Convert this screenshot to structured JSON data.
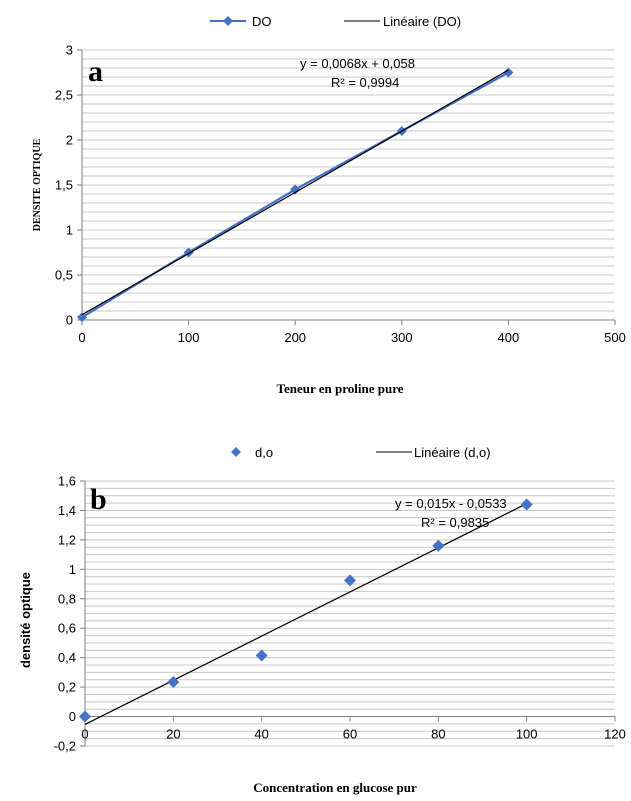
{
  "chart_data": [
    {
      "type": "scatter",
      "panel_label": "a",
      "xlabel": "Teneur  en proline pure",
      "ylabel": "DENSITE OPTIQUE",
      "xlim": [
        0,
        500
      ],
      "ylim": [
        0,
        3
      ],
      "x_ticks": [
        "0",
        "100",
        "200",
        "300",
        "400",
        "500"
      ],
      "y_ticks": [
        "0",
        "0,5",
        "1",
        "1,5",
        "2",
        "2,5",
        "3"
      ],
      "grid": "horizontal",
      "legend_position": "top",
      "series": [
        {
          "name": "DO",
          "x": [
            0,
            100,
            200,
            300,
            400
          ],
          "y": [
            0.03,
            0.75,
            1.45,
            2.1,
            2.75
          ],
          "color": "#4472C4",
          "marker": "diamond",
          "connected": true
        }
      ],
      "trendline": {
        "name": "Linéaire (DO)",
        "slope": 0.0068,
        "intercept": 0.058,
        "color": "#000000",
        "equation": "y = 0,0068x + 0,058",
        "r2": "R² = 0,9994"
      }
    },
    {
      "type": "scatter",
      "panel_label": "b",
      "xlabel": "Concentration en glucose pur",
      "ylabel": "densité optique",
      "xlim": [
        0,
        120
      ],
      "ylim": [
        -0.2,
        1.6
      ],
      "x_ticks": [
        "0",
        "20",
        "40",
        "60",
        "80",
        "100",
        "120"
      ],
      "y_ticks": [
        "-0,2",
        "0",
        "0,2",
        "0,4",
        "0,6",
        "0,8",
        "1",
        "1,2",
        "1,4",
        "1,6"
      ],
      "grid": "horizontal",
      "legend_position": "top",
      "series": [
        {
          "name": "d,o",
          "x": [
            0,
            20,
            40,
            60,
            80,
            100
          ],
          "y": [
            0.0,
            0.235,
            0.415,
            0.925,
            1.16,
            1.44
          ],
          "color": "#4472C4",
          "marker": "diamond",
          "connected": false
        }
      ],
      "trendline": {
        "name": "Linéaire (d,o)",
        "slope": 0.015,
        "intercept": -0.0533,
        "color": "#000000",
        "equation": "y = 0,015x - 0,0533",
        "r2": "R² = 0,9835"
      }
    }
  ]
}
